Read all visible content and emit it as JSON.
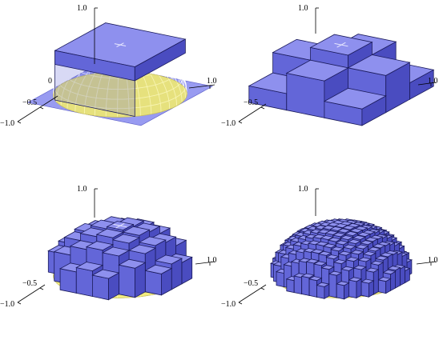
{
  "panels": [
    {
      "id": "panel-1",
      "box_divisions": 1,
      "tick_labels": {
        "z_top": "1.0",
        "x_right": "1.0",
        "y_neg_half": "−0.5",
        "y_neg_one": "−1.0",
        "partial_zero": "0"
      }
    },
    {
      "id": "panel-2",
      "box_divisions": 3,
      "tick_labels": {
        "z_top": "1.0",
        "x_right": "1.0",
        "y_neg_half": "−0.5",
        "y_neg_one": "−1.0",
        "partial_zero": ""
      }
    },
    {
      "id": "panel-3",
      "box_divisions": 7,
      "tick_labels": {
        "z_top": "1.0",
        "x_right": "1.0",
        "y_neg_half": "−0.5",
        "y_neg_one": "−1.0",
        "partial_zero": ""
      }
    },
    {
      "id": "panel-4",
      "box_divisions": 15,
      "tick_labels": {
        "z_top": "1.0",
        "x_right": "1.0",
        "y_neg_half": "−0.5",
        "y_neg_one": "−1.0",
        "partial_zero": ""
      }
    }
  ],
  "colors": {
    "hemisphere": "#f4ee7a",
    "box_top": "#8e90ee",
    "box_front": "#6366d8",
    "box_side": "#4a4cc0",
    "background": "#ffffff"
  }
}
